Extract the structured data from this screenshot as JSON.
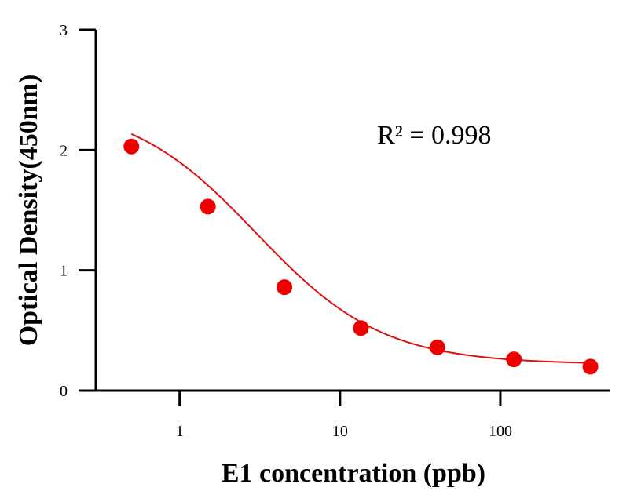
{
  "chart_data": {
    "type": "scatter",
    "title": "",
    "xlabel": "E1 concentration (ppb)",
    "ylabel": "Optical Density(450nm)",
    "xscale": "log",
    "xlim": [
      0.3,
      480
    ],
    "ylim": [
      0,
      3
    ],
    "x_ticks": [
      1,
      10,
      100
    ],
    "x_tick_labels": [
      "1",
      "10",
      "100"
    ],
    "y_ticks": [
      0,
      1,
      2,
      3
    ],
    "y_tick_labels": [
      "0",
      "1",
      "2",
      "3"
    ],
    "grid": false,
    "legend": "none",
    "annotation": "R² = 0.998",
    "colors": {
      "series": "#ee0000",
      "curve": "#dd1111",
      "axis": "#000000"
    },
    "series": [
      {
        "x": [
          0.5,
          1.5,
          4.5,
          13.5,
          40.5,
          121.5,
          364.5
        ],
        "y": [
          2.03,
          1.53,
          0.86,
          0.52,
          0.36,
          0.26,
          0.2
        ]
      }
    ],
    "fit": {
      "model": "4PL",
      "top": 2.4,
      "bottom": 0.22,
      "ec50": 3.0,
      "hill": 1.1
    }
  }
}
